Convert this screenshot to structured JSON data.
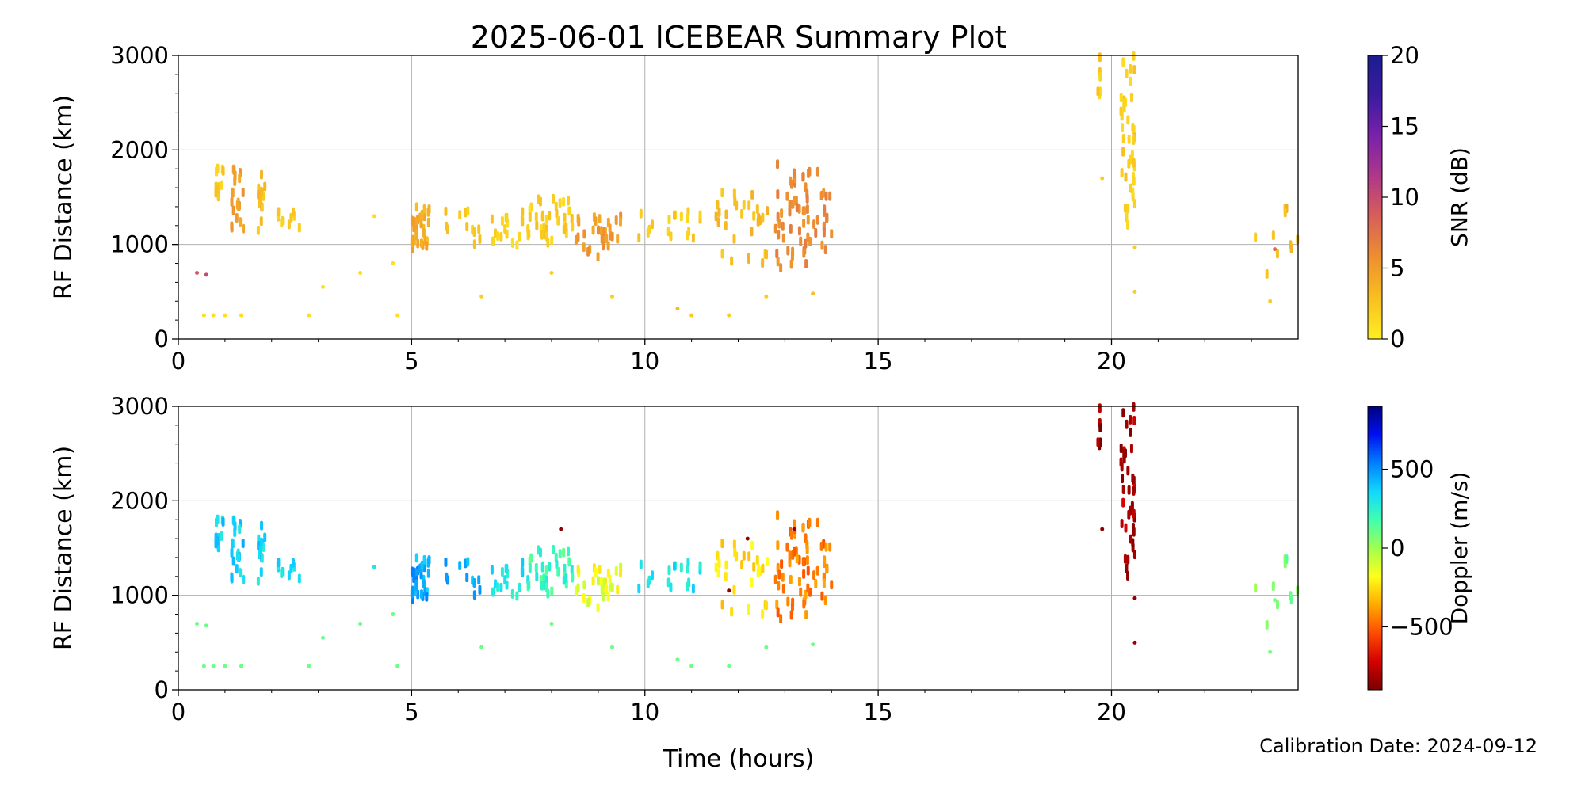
{
  "figure": {
    "title": "2025-06-01 ICEBEAR Summary Plot",
    "footer": "Calibration Date: 2024-09-12"
  },
  "chart_data": [
    {
      "type": "scatter",
      "panel": "top",
      "xlabel": "",
      "ylabel": "RF Distance (km)",
      "xlim": [
        0,
        24
      ],
      "ylim": [
        0,
        3000
      ],
      "x_ticks": [
        0,
        5,
        10,
        15,
        20
      ],
      "y_ticks": [
        0,
        1000,
        2000,
        3000
      ],
      "grid": true,
      "color_variable": {
        "label": "SNR (dB)",
        "range": [
          0,
          20
        ],
        "ticks": [
          0,
          5,
          10,
          15,
          20
        ],
        "colormap": [
          "#ffee22",
          "#f8c020",
          "#ee9030",
          "#d86058",
          "#b03888",
          "#7a22a8",
          "#3a1ba0",
          "#1c1c90"
        ]
      },
      "clusters": [
        {
          "t": [
            0.8,
            1.0
          ],
          "r": [
            1450,
            1900
          ],
          "n": 14,
          "c": 2
        },
        {
          "t": [
            1.1,
            1.4
          ],
          "r": [
            1150,
            1800
          ],
          "n": 20,
          "c": 5
        },
        {
          "t": [
            1.7,
            1.9
          ],
          "r": [
            1150,
            1800
          ],
          "n": 14,
          "c": 3
        },
        {
          "t": [
            2.1,
            2.6
          ],
          "r": [
            1150,
            1350
          ],
          "n": 10,
          "c": 2
        },
        {
          "t": [
            5.0,
            5.4
          ],
          "r": [
            950,
            1400
          ],
          "n": 30,
          "c": 4
        },
        {
          "t": [
            5.7,
            6.5
          ],
          "r": [
            950,
            1400
          ],
          "n": 12,
          "c": 2
        },
        {
          "t": [
            6.7,
            7.5
          ],
          "r": [
            950,
            1400
          ],
          "n": 18,
          "c": 2
        },
        {
          "t": [
            7.5,
            8.5
          ],
          "r": [
            1000,
            1500
          ],
          "n": 36,
          "c": 2
        },
        {
          "t": [
            8.5,
            9.5
          ],
          "r": [
            850,
            1300
          ],
          "n": 30,
          "c": 5
        },
        {
          "t": [
            9.8,
            11.2
          ],
          "r": [
            950,
            1350
          ],
          "n": 18,
          "c": 2
        },
        {
          "t": [
            11.5,
            12.7
          ],
          "r": [
            750,
            1550
          ],
          "n": 30,
          "c": 3
        },
        {
          "t": [
            12.8,
            14.0
          ],
          "r": [
            750,
            1900
          ],
          "n": 70,
          "c": 6
        },
        {
          "t": [
            19.7,
            19.8
          ],
          "r": [
            2550,
            3000
          ],
          "n": 6,
          "c": 2
        },
        {
          "t": [
            20.2,
            20.5
          ],
          "r": [
            1200,
            3000
          ],
          "n": 40,
          "c": 2
        },
        {
          "t": [
            23.0,
            24.0
          ],
          "r": [
            500,
            1400
          ],
          "n": 10,
          "c": 3
        }
      ],
      "scatter_points": [
        [
          0.4,
          700,
          9
        ],
        [
          0.6,
          680,
          10
        ],
        [
          0.55,
          250,
          1
        ],
        [
          0.75,
          250,
          1
        ],
        [
          1.0,
          250,
          1
        ],
        [
          1.35,
          250,
          1
        ],
        [
          2.8,
          250,
          1
        ],
        [
          3.1,
          550,
          1
        ],
        [
          3.9,
          700,
          1
        ],
        [
          4.2,
          1300,
          1
        ],
        [
          4.6,
          800,
          1
        ],
        [
          4.7,
          250,
          1
        ],
        [
          6.5,
          450,
          2
        ],
        [
          8.0,
          700,
          2
        ],
        [
          9.3,
          450,
          2
        ],
        [
          10.7,
          320,
          3
        ],
        [
          11.0,
          250,
          2
        ],
        [
          11.8,
          250,
          2
        ],
        [
          12.6,
          450,
          2
        ],
        [
          13.6,
          480,
          3
        ],
        [
          19.8,
          1700,
          2
        ],
        [
          20.5,
          500,
          2
        ],
        [
          20.5,
          970,
          2
        ],
        [
          23.5,
          950,
          8
        ],
        [
          23.4,
          400,
          2
        ]
      ]
    },
    {
      "type": "scatter",
      "panel": "bottom",
      "xlabel": "Time (hours)",
      "ylabel": "RF Distance (km)",
      "xlim": [
        0,
        24
      ],
      "ylim": [
        0,
        3000
      ],
      "x_ticks": [
        0,
        5,
        10,
        15,
        20
      ],
      "y_ticks": [
        0,
        1000,
        2000,
        3000
      ],
      "grid": true,
      "color_variable": {
        "label": "Doppler (m/s)",
        "range": [
          -900,
          900
        ],
        "ticks": [
          -500,
          0,
          500
        ],
        "colormap": [
          "#7a0000",
          "#d40000",
          "#ff4a00",
          "#ffaa00",
          "#ffff1a",
          "#a0ff50",
          "#40ffb0",
          "#10d8ff",
          "#0080ff",
          "#0010f0",
          "#000080"
        ]
      },
      "clusters": [
        {
          "t": [
            0.8,
            1.0
          ],
          "r": [
            1450,
            1900
          ],
          "n": 14,
          "c": 350
        },
        {
          "t": [
            1.1,
            1.4
          ],
          "r": [
            1150,
            1800
          ],
          "n": 20,
          "c": 380
        },
        {
          "t": [
            1.7,
            1.9
          ],
          "r": [
            1150,
            1800
          ],
          "n": 14,
          "c": 350
        },
        {
          "t": [
            2.1,
            2.6
          ],
          "r": [
            1150,
            1350
          ],
          "n": 10,
          "c": 330
        },
        {
          "t": [
            5.0,
            5.4
          ],
          "r": [
            950,
            1400
          ],
          "n": 30,
          "c": 450
        },
        {
          "t": [
            5.7,
            6.5
          ],
          "r": [
            950,
            1400
          ],
          "n": 12,
          "c": 420
        },
        {
          "t": [
            6.7,
            7.5
          ],
          "r": [
            950,
            1400
          ],
          "n": 18,
          "c": 320
        },
        {
          "t": [
            7.5,
            8.5
          ],
          "r": [
            1000,
            1500
          ],
          "n": 36,
          "c": 200
        },
        {
          "t": [
            8.5,
            9.5
          ],
          "r": [
            850,
            1300
          ],
          "n": 30,
          "c": -150
        },
        {
          "t": [
            9.8,
            11.2
          ],
          "r": [
            950,
            1350
          ],
          "n": 18,
          "c": 300
        },
        {
          "t": [
            11.5,
            12.7
          ],
          "r": [
            750,
            1550
          ],
          "n": 30,
          "c": -250
        },
        {
          "t": [
            12.8,
            14.0
          ],
          "r": [
            750,
            1900
          ],
          "n": 70,
          "c": -450
        },
        {
          "t": [
            19.7,
            19.8
          ],
          "r": [
            2550,
            3000
          ],
          "n": 6,
          "c": -850
        },
        {
          "t": [
            20.2,
            20.5
          ],
          "r": [
            1200,
            3000
          ],
          "n": 40,
          "c": -800
        },
        {
          "t": [
            23.0,
            24.0
          ],
          "r": [
            500,
            1400
          ],
          "n": 10,
          "c": 80
        }
      ],
      "scatter_points": [
        [
          0.4,
          700,
          100
        ],
        [
          0.6,
          680,
          100
        ],
        [
          0.55,
          250,
          100
        ],
        [
          0.75,
          250,
          100
        ],
        [
          1.0,
          250,
          100
        ],
        [
          1.35,
          250,
          100
        ],
        [
          2.8,
          250,
          100
        ],
        [
          3.1,
          550,
          100
        ],
        [
          3.9,
          700,
          100
        ],
        [
          4.2,
          1300,
          300
        ],
        [
          4.6,
          800,
          100
        ],
        [
          4.7,
          250,
          100
        ],
        [
          6.5,
          450,
          100
        ],
        [
          8.0,
          700,
          100
        ],
        [
          9.3,
          450,
          100
        ],
        [
          10.7,
          320,
          100
        ],
        [
          11.0,
          250,
          100
        ],
        [
          11.8,
          250,
          100
        ],
        [
          12.6,
          450,
          100
        ],
        [
          13.6,
          480,
          100
        ],
        [
          19.8,
          1700,
          -850
        ],
        [
          20.5,
          500,
          -850
        ],
        [
          20.5,
          970,
          -850
        ],
        [
          23.5,
          950,
          80
        ],
        [
          23.4,
          400,
          80
        ],
        [
          8.2,
          1700,
          -850
        ],
        [
          13.2,
          1700,
          -850
        ],
        [
          12.2,
          1600,
          -850
        ],
        [
          11.8,
          1050,
          -850
        ]
      ]
    }
  ]
}
